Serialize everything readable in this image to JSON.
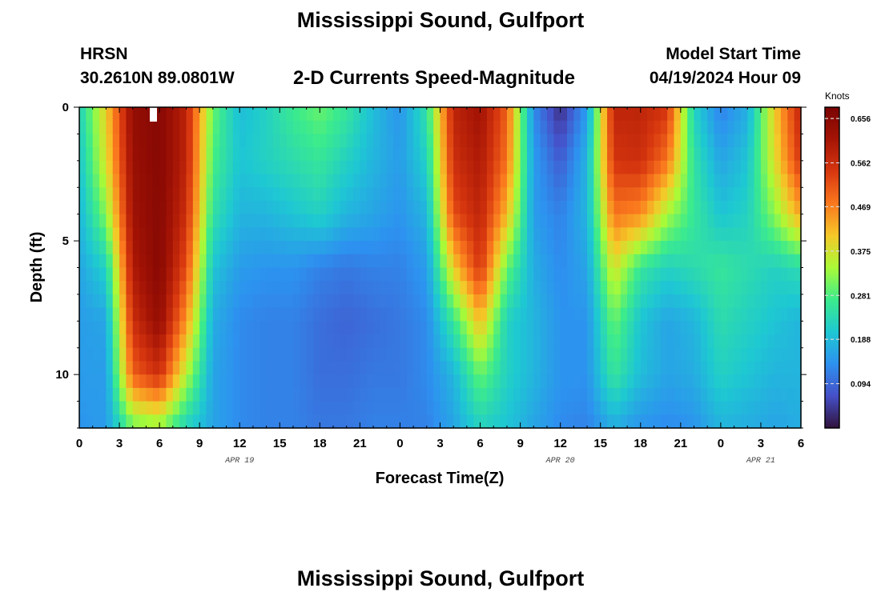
{
  "page": {
    "title_top": "Mississippi Sound, Gulfport",
    "title_bottom": "Mississippi Sound, Gulfport",
    "station_id": "HRSN",
    "coordinates": "30.2610N  89.0801W",
    "subtitle": "2-D Currents Speed-Magnitude",
    "model_label": "Model Start Time",
    "model_time": "04/19/2024 Hour 09"
  },
  "chart_data": {
    "type": "heatmap",
    "title": "2-D Currents Speed-Magnitude",
    "xlabel": "Forecast Time(Z)",
    "ylabel": "Depth (ft)",
    "x_start": "2024-04-19T00:00Z",
    "x_tick_labels": [
      "0",
      "3",
      "6",
      "9",
      "12",
      "15",
      "18",
      "21",
      "0",
      "3",
      "6",
      "9",
      "12",
      "15",
      "18",
      "21",
      "0",
      "3",
      "6"
    ],
    "x_tick_hours": [
      0,
      3,
      6,
      9,
      12,
      15,
      18,
      21,
      24,
      27,
      30,
      33,
      36,
      39,
      42,
      45,
      48,
      51,
      54
    ],
    "date_labels": [
      {
        "text": "APR 19",
        "hour": 12
      },
      {
        "text": "APR 20",
        "hour": 36
      },
      {
        "text": "APR 21",
        "hour": 51
      }
    ],
    "xlim": [
      0,
      54
    ],
    "y_tick_labels": [
      "0",
      "5",
      "10"
    ],
    "y_tick_values": [
      0,
      5,
      10
    ],
    "ylim": [
      0,
      12
    ],
    "y_inverted": true,
    "x_hours": [
      0,
      2,
      4,
      6,
      8,
      10,
      12,
      14,
      16,
      18,
      20,
      22,
      24,
      26,
      28,
      30,
      32,
      34,
      36,
      38,
      40,
      42,
      44,
      46,
      48,
      50,
      52,
      54
    ],
    "depths": [
      0,
      2,
      4,
      6,
      8,
      10,
      12
    ],
    "values": [
      [
        0.22,
        0.4,
        0.64,
        0.66,
        0.58,
        0.3,
        0.19,
        0.22,
        0.27,
        0.3,
        0.26,
        0.19,
        0.14,
        0.25,
        0.58,
        0.62,
        0.5,
        0.13,
        0.03,
        0.15,
        0.58,
        0.58,
        0.55,
        0.22,
        0.12,
        0.17,
        0.4,
        0.58
      ],
      [
        0.2,
        0.38,
        0.63,
        0.66,
        0.58,
        0.28,
        0.2,
        0.22,
        0.24,
        0.26,
        0.22,
        0.18,
        0.15,
        0.22,
        0.56,
        0.6,
        0.48,
        0.15,
        0.08,
        0.18,
        0.55,
        0.56,
        0.48,
        0.25,
        0.16,
        0.2,
        0.38,
        0.55
      ],
      [
        0.18,
        0.32,
        0.62,
        0.66,
        0.56,
        0.25,
        0.18,
        0.18,
        0.2,
        0.22,
        0.18,
        0.16,
        0.14,
        0.18,
        0.52,
        0.58,
        0.42,
        0.15,
        0.12,
        0.18,
        0.48,
        0.46,
        0.34,
        0.26,
        0.2,
        0.22,
        0.32,
        0.44
      ],
      [
        0.16,
        0.22,
        0.6,
        0.66,
        0.52,
        0.2,
        0.15,
        0.14,
        0.14,
        0.12,
        0.11,
        0.12,
        0.12,
        0.15,
        0.4,
        0.55,
        0.3,
        0.17,
        0.13,
        0.16,
        0.38,
        0.26,
        0.22,
        0.24,
        0.26,
        0.24,
        0.22,
        0.24
      ],
      [
        0.15,
        0.16,
        0.56,
        0.64,
        0.45,
        0.17,
        0.13,
        0.12,
        0.12,
        0.1,
        0.09,
        0.1,
        0.11,
        0.13,
        0.26,
        0.42,
        0.22,
        0.18,
        0.14,
        0.14,
        0.3,
        0.2,
        0.16,
        0.18,
        0.24,
        0.22,
        0.2,
        0.18
      ],
      [
        0.15,
        0.15,
        0.5,
        0.56,
        0.35,
        0.16,
        0.13,
        0.12,
        0.12,
        0.1,
        0.1,
        0.11,
        0.11,
        0.13,
        0.18,
        0.3,
        0.22,
        0.18,
        0.14,
        0.14,
        0.26,
        0.19,
        0.16,
        0.17,
        0.22,
        0.2,
        0.18,
        0.18
      ],
      [
        0.14,
        0.15,
        0.3,
        0.32,
        0.22,
        0.16,
        0.13,
        0.12,
        0.12,
        0.11,
        0.11,
        0.12,
        0.12,
        0.12,
        0.16,
        0.22,
        0.2,
        0.16,
        0.13,
        0.12,
        0.17,
        0.14,
        0.13,
        0.14,
        0.18,
        0.17,
        0.16,
        0.17
      ]
    ],
    "colorbar": {
      "label": "Knots",
      "min": 0.0,
      "max": 0.68,
      "ticks": [
        0.656,
        0.562,
        0.469,
        0.375,
        0.281,
        0.188,
        0.094
      ],
      "tick_labels": [
        "0.656",
        "0.562",
        "0.469",
        "0.375",
        "0.281",
        "0.188",
        "0.094"
      ]
    },
    "grid": false
  }
}
